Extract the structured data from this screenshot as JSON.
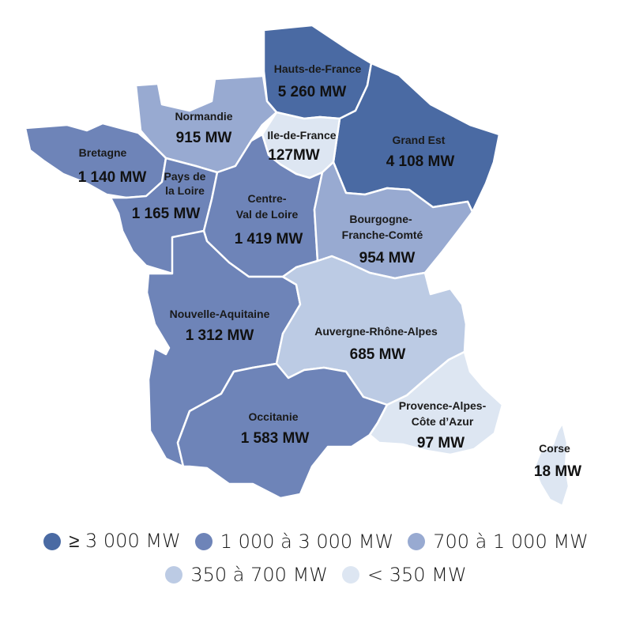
{
  "colors": {
    "tier1": "#4a6aa3",
    "tier2": "#6e84b8",
    "tier3": "#98aad1",
    "tier4": "#bccbe4",
    "tier5": "#dde6f2"
  },
  "regions": [
    {
      "id": "hauts-de-france",
      "name": "Hauts-de-France",
      "value": "5 260 MW",
      "tier": "tier1"
    },
    {
      "id": "grand-est",
      "name": "Grand Est",
      "value": "4 108 MW",
      "tier": "tier1"
    },
    {
      "id": "normandie",
      "name": "Normandie",
      "value": "915 MW",
      "tier": "tier3"
    },
    {
      "id": "ile-de-france",
      "name": "Ile-de-France",
      "value": "127MW",
      "tier": "tier5"
    },
    {
      "id": "bretagne",
      "name": "Bretagne",
      "value": "1 140 MW",
      "tier": "tier2"
    },
    {
      "id": "pays-de-la-loire",
      "name": [
        "Pays de",
        "la Loire"
      ],
      "value": "1 165 MW",
      "tier": "tier2"
    },
    {
      "id": "centre-val-de-loire",
      "name": [
        "Centre-",
        "Val de Loire"
      ],
      "value": "1 419 MW",
      "tier": "tier2"
    },
    {
      "id": "bourgogne-franche-comte",
      "name": [
        "Bourgogne-",
        "Franche-Comté"
      ],
      "value": "954 MW",
      "tier": "tier3"
    },
    {
      "id": "nouvelle-aquitaine",
      "name": "Nouvelle-Aquitaine",
      "value": "1 312 MW",
      "tier": "tier2"
    },
    {
      "id": "auvergne-rhone-alpes",
      "name": "Auvergne-Rhône-Alpes",
      "value": "685 MW",
      "tier": "tier4"
    },
    {
      "id": "occitanie",
      "name": "Occitanie",
      "value": "1 583 MW",
      "tier": "tier2"
    },
    {
      "id": "provence-alpes-cote-dazur",
      "name": [
        "Provence-Alpes-",
        "Côte d’Azur"
      ],
      "value": "97 MW",
      "tier": "tier5"
    },
    {
      "id": "corse",
      "name": "Corse",
      "value": "18 MW",
      "tier": "tier5"
    }
  ],
  "legend": [
    {
      "label": "≥ 3 000 MW",
      "tier": "tier1"
    },
    {
      "label": "1 000 à 3 000 MW",
      "tier": "tier2"
    },
    {
      "label": "700 à 1 000 MW",
      "tier": "tier3"
    },
    {
      "label": "350 à 700 MW",
      "tier": "tier4"
    },
    {
      "label": "< 350 MW",
      "tier": "tier5"
    }
  ]
}
